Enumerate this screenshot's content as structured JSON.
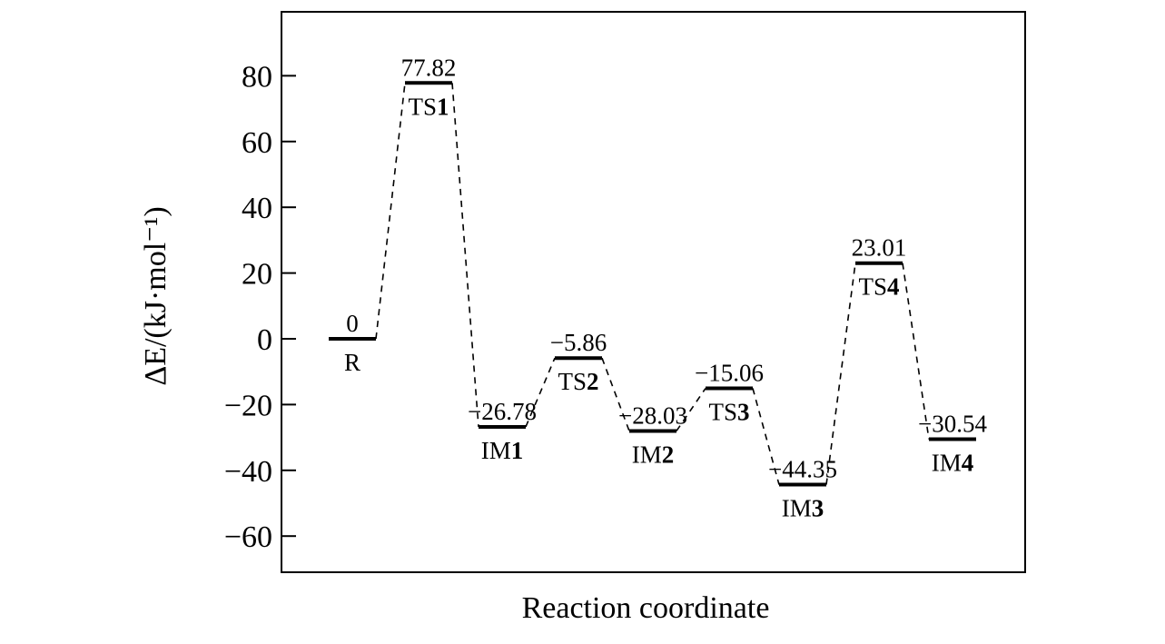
{
  "chart_data": {
    "type": "line",
    "subtype": "reaction-energy-profile",
    "xlabel": "Reaction coordinate",
    "ylabel": "ΔE/(kJ·mol⁻¹)",
    "ylim": [
      -70,
      95
    ],
    "yticks": [
      -60,
      -40,
      -20,
      0,
      20,
      40,
      60,
      80
    ],
    "ytick_labels": [
      "−60",
      "−40",
      "−20",
      "0",
      "20",
      "40",
      "60",
      "80"
    ],
    "grid": false,
    "legend": "none",
    "connector_style": "dashed",
    "states": [
      {
        "name": "R",
        "energy": 0,
        "value_label": "0"
      },
      {
        "name": "TS1",
        "energy": 77.82,
        "value_label": "77.82"
      },
      {
        "name": "IM1",
        "energy": -26.78,
        "value_label": "−26.78"
      },
      {
        "name": "TS2",
        "energy": -5.86,
        "value_label": "−5.86"
      },
      {
        "name": "IM2",
        "energy": -28.03,
        "value_label": "−28.03"
      },
      {
        "name": "TS3",
        "energy": -15.06,
        "value_label": "−15.06"
      },
      {
        "name": "IM3",
        "energy": -44.35,
        "value_label": "−44.35"
      },
      {
        "name": "TS4",
        "energy": 23.01,
        "value_label": "23.01"
      },
      {
        "name": "IM4",
        "energy": -30.54,
        "value_label": "−30.54"
      }
    ]
  }
}
